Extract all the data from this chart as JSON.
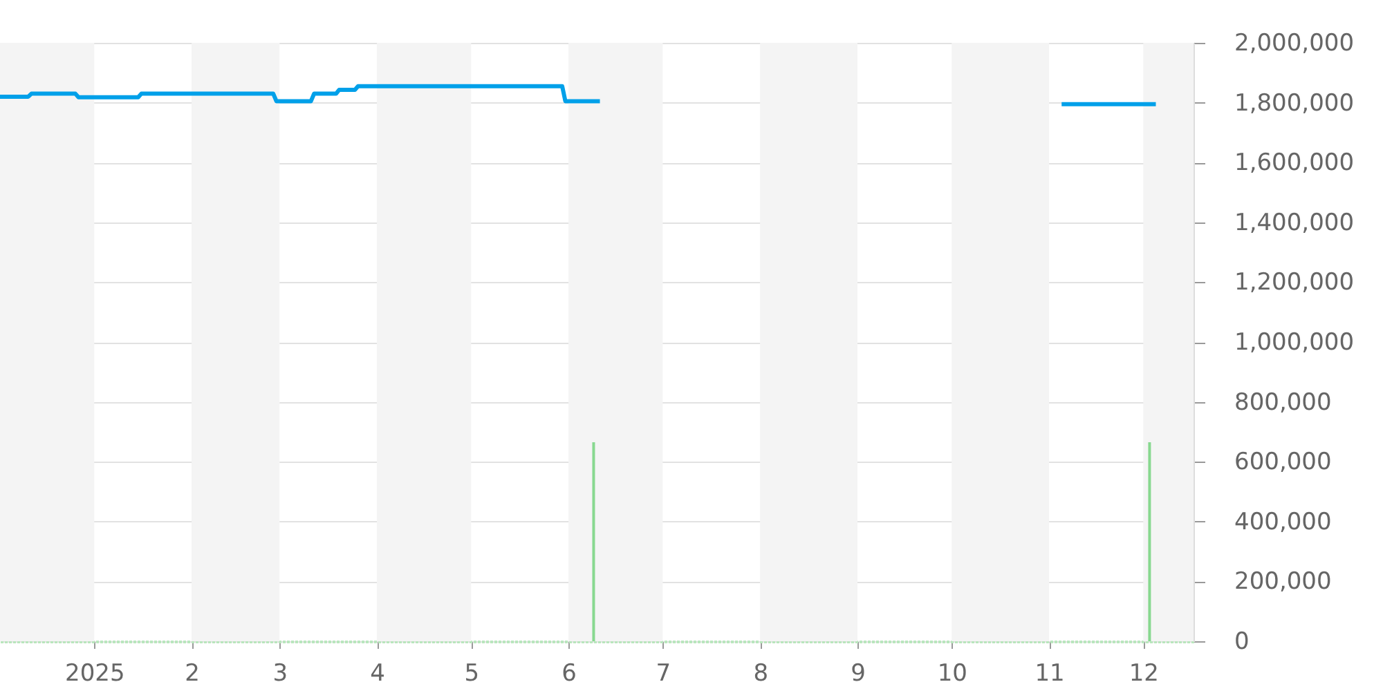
{
  "chart_data": {
    "type": "line",
    "xlim": [
      "2024-12-02",
      "2025-12-17"
    ],
    "xticks": [
      {
        "value": "2025-01-01",
        "label": "2025"
      },
      {
        "value": "2025-02-01",
        "label": "2"
      },
      {
        "value": "2025-03-01",
        "label": "3"
      },
      {
        "value": "2025-04-01",
        "label": "4"
      },
      {
        "value": "2025-05-01",
        "label": "5"
      },
      {
        "value": "2025-06-01",
        "label": "6"
      },
      {
        "value": "2025-07-01",
        "label": "7"
      },
      {
        "value": "2025-08-01",
        "label": "8"
      },
      {
        "value": "2025-09-01",
        "label": "9"
      },
      {
        "value": "2025-10-01",
        "label": "10"
      },
      {
        "value": "2025-11-01",
        "label": "11"
      },
      {
        "value": "2025-12-01",
        "label": "12"
      }
    ],
    "ylim": [
      0,
      2000000
    ],
    "yticks": [
      0,
      {
        "value": 200000,
        "label": "200,000"
      },
      {
        "value": 400000,
        "label": "400,000"
      },
      {
        "value": 600000,
        "label": "600,000"
      },
      {
        "value": 800000,
        "label": "800,000"
      },
      {
        "value": 1000000,
        "label": "1,000,000"
      },
      {
        "value": 1200000,
        "label": "1,200,000"
      },
      {
        "value": 1400000,
        "label": "1,400,000"
      },
      {
        "value": 1600000,
        "label": "1,600,000"
      },
      {
        "value": 1800000,
        "label": "1,800,000"
      },
      {
        "value": 2000000,
        "label": "2,000,000"
      }
    ],
    "grid": "y",
    "bands": [
      {
        "axis": "x",
        "from": "2024-12-02",
        "to": "2025-01-01",
        "color": "#f4f4f4"
      },
      {
        "axis": "x",
        "from": "2025-02-01",
        "to": "2025-03-01",
        "color": "#f4f4f4"
      },
      {
        "axis": "x",
        "from": "2025-04-01",
        "to": "2025-05-01",
        "color": "#f4f4f4"
      },
      {
        "axis": "x",
        "from": "2025-06-01",
        "to": "2025-07-01",
        "color": "#f4f4f4"
      },
      {
        "axis": "x",
        "from": "2025-08-01",
        "to": "2025-09-01",
        "color": "#f4f4f4"
      },
      {
        "axis": "x",
        "from": "2025-10-01",
        "to": "2025-11-01",
        "color": "#f4f4f4"
      },
      {
        "axis": "x",
        "from": "2025-12-01",
        "to": "2025-12-17",
        "color": "#f4f4f4"
      }
    ],
    "series": [
      {
        "color": "#00a0e9",
        "x": [
          "2024-12-02",
          "2024-12-11",
          "2024-12-12",
          "2024-12-26",
          "2024-12-27",
          "2025-01-15",
          "2025-01-16",
          "2025-02-27",
          "2025-02-28",
          "2025-03-11",
          "2025-03-12",
          "2025-03-19",
          "2025-03-20",
          "2025-03-25",
          "2025-03-26",
          "2025-05-30",
          "2025-05-31",
          "2025-06-11",
          "2025-08-01",
          "2025-11-05",
          "2025-12-05"
        ],
        "values": [
          1820000,
          1820000,
          1830000,
          1830000,
          1818000,
          1818000,
          1830000,
          1830000,
          1805000,
          1805000,
          1830000,
          1830000,
          1843000,
          1843000,
          1855000,
          1855000,
          1805000,
          1805000,
          null,
          1795000,
          1795000
        ]
      },
      {
        "type": "bar",
        "color": "#88d890",
        "x": [
          "2025-06-09",
          "2025-12-03"
        ],
        "values": [
          665000,
          665000
        ]
      }
    ]
  }
}
